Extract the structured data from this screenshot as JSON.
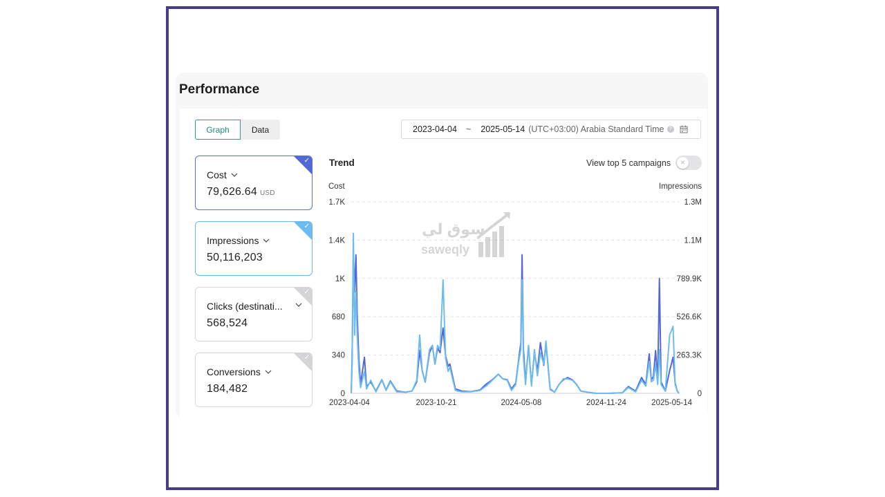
{
  "page": {
    "title": "Performance"
  },
  "tabs": {
    "graph": "Graph",
    "data": "Data"
  },
  "date_range": {
    "start": "2023-04-04",
    "separator": "~",
    "end": "2025-05-14",
    "timezone": "(UTC+03:00) Arabia Standard Time"
  },
  "metrics": [
    {
      "label": "Cost",
      "value": "79,626.64",
      "unit": "USD",
      "selected": true,
      "color": "#5468d4"
    },
    {
      "label": "Impressions",
      "value": "50,116,203",
      "unit": "",
      "selected": true,
      "color": "#6cbcf0"
    },
    {
      "label": "Clicks (destinati...",
      "value": "568,524",
      "unit": "",
      "selected": false,
      "color": "#d5d5d8"
    },
    {
      "label": "Conversions",
      "value": "184,482",
      "unit": "",
      "selected": false,
      "color": "#d5d5d8"
    }
  ],
  "trend": {
    "title": "Trend",
    "toggle_label": "View top 5 campaigns",
    "toggle_on": false
  },
  "watermark": {
    "arabic": "سوق لي",
    "latin": "saweqly"
  },
  "chart_data": {
    "type": "line",
    "x_ticks": [
      "2023-04-04",
      "2023-10-21",
      "2024-05-08",
      "2024-11-24",
      "2025-05-14"
    ],
    "y_left": {
      "label": "Cost",
      "ticks": [
        "0",
        "340",
        "680",
        "1K",
        "1.4K",
        "1.7K"
      ],
      "range": [
        0,
        1700
      ]
    },
    "y_right": {
      "label": "Impressions",
      "ticks": [
        "0",
        "263.3K",
        "526.6K",
        "789.9K",
        "1.1M",
        "1.3M"
      ],
      "range": [
        0,
        1316500
      ]
    },
    "grid": true,
    "series": [
      {
        "name": "Cost",
        "color": "#5468d4",
        "axis": "left",
        "points": [
          [
            "2023-04-04",
            0
          ],
          [
            "2023-04-06",
            300
          ],
          [
            "2023-04-09",
            1240
          ],
          [
            "2023-04-12",
            900
          ],
          [
            "2023-04-15",
            1230
          ],
          [
            "2023-04-18",
            700
          ],
          [
            "2023-04-22",
            300
          ],
          [
            "2023-04-26",
            80
          ],
          [
            "2023-05-05",
            320
          ],
          [
            "2023-05-10",
            60
          ],
          [
            "2023-05-20",
            100
          ],
          [
            "2023-06-01",
            20
          ],
          [
            "2023-06-15",
            120
          ],
          [
            "2023-06-25",
            30
          ],
          [
            "2023-07-05",
            110
          ],
          [
            "2023-07-20",
            20
          ],
          [
            "2023-08-10",
            10
          ],
          [
            "2023-08-25",
            20
          ],
          [
            "2023-09-05",
            100
          ],
          [
            "2023-09-12",
            380
          ],
          [
            "2023-09-18",
            200
          ],
          [
            "2023-09-25",
            100
          ],
          [
            "2023-10-05",
            360
          ],
          [
            "2023-10-12",
            420
          ],
          [
            "2023-10-18",
            260
          ],
          [
            "2023-10-24",
            400
          ],
          [
            "2023-10-30",
            360
          ],
          [
            "2023-11-06",
            580
          ],
          [
            "2023-11-12",
            330
          ],
          [
            "2023-11-18",
            240
          ],
          [
            "2023-11-22",
            260
          ],
          [
            "2023-12-05",
            40
          ],
          [
            "2023-12-20",
            20
          ],
          [
            "2024-01-10",
            15
          ],
          [
            "2024-02-01",
            30
          ],
          [
            "2024-02-15",
            80
          ],
          [
            "2024-03-01",
            120
          ],
          [
            "2024-03-15",
            170
          ],
          [
            "2024-03-25",
            130
          ],
          [
            "2024-04-05",
            120
          ],
          [
            "2024-04-15",
            40
          ],
          [
            "2024-04-25",
            90
          ],
          [
            "2024-05-02",
            300
          ],
          [
            "2024-05-07",
            450
          ],
          [
            "2024-05-10",
            1230
          ],
          [
            "2024-05-13",
            400
          ],
          [
            "2024-05-18",
            100
          ],
          [
            "2024-05-25",
            420
          ],
          [
            "2024-06-01",
            80
          ],
          [
            "2024-06-08",
            360
          ],
          [
            "2024-06-15",
            200
          ],
          [
            "2024-06-22",
            450
          ],
          [
            "2024-06-30",
            250
          ],
          [
            "2024-07-05",
            440
          ],
          [
            "2024-07-15",
            40
          ],
          [
            "2024-07-25",
            10
          ],
          [
            "2024-08-05",
            80
          ],
          [
            "2024-08-15",
            120
          ],
          [
            "2024-08-25",
            140
          ],
          [
            "2024-09-05",
            120
          ],
          [
            "2024-09-15",
            80
          ],
          [
            "2024-09-25",
            20
          ],
          [
            "2024-10-10",
            10
          ],
          [
            "2024-11-01",
            0
          ],
          [
            "2024-12-01",
            0
          ],
          [
            "2025-01-01",
            5
          ],
          [
            "2025-01-15",
            60
          ],
          [
            "2025-02-01",
            20
          ],
          [
            "2025-02-15",
            140
          ],
          [
            "2025-02-25",
            80
          ],
          [
            "2025-03-05",
            350
          ],
          [
            "2025-03-10",
            120
          ],
          [
            "2025-03-15",
            150
          ],
          [
            "2025-03-20",
            380
          ],
          [
            "2025-03-25",
            120
          ],
          [
            "2025-03-29",
            1020
          ],
          [
            "2025-04-02",
            100
          ],
          [
            "2025-04-12",
            20
          ],
          [
            "2025-04-22",
            200
          ],
          [
            "2025-04-30",
            320
          ],
          [
            "2025-05-05",
            90
          ],
          [
            "2025-05-10",
            20
          ],
          [
            "2025-05-14",
            0
          ]
        ]
      },
      {
        "name": "Impressions",
        "color": "#6cbcf0",
        "axis": "right",
        "points": [
          [
            "2023-04-04",
            0
          ],
          [
            "2023-04-06",
            180000
          ],
          [
            "2023-04-09",
            1100000
          ],
          [
            "2023-04-12",
            400000
          ],
          [
            "2023-04-15",
            700000
          ],
          [
            "2023-04-18",
            400000
          ],
          [
            "2023-04-22",
            150000
          ],
          [
            "2023-04-26",
            40000
          ],
          [
            "2023-05-05",
            150000
          ],
          [
            "2023-05-10",
            30000
          ],
          [
            "2023-05-20",
            90000
          ],
          [
            "2023-06-01",
            10000
          ],
          [
            "2023-06-15",
            90000
          ],
          [
            "2023-06-25",
            20000
          ],
          [
            "2023-07-05",
            80000
          ],
          [
            "2023-07-20",
            10000
          ],
          [
            "2023-08-10",
            8000
          ],
          [
            "2023-08-25",
            15000
          ],
          [
            "2023-09-05",
            90000
          ],
          [
            "2023-09-12",
            400000
          ],
          [
            "2023-09-18",
            150000
          ],
          [
            "2023-09-25",
            80000
          ],
          [
            "2023-10-05",
            300000
          ],
          [
            "2023-10-12",
            330000
          ],
          [
            "2023-10-18",
            200000
          ],
          [
            "2023-10-24",
            330000
          ],
          [
            "2023-10-30",
            300000
          ],
          [
            "2023-11-06",
            780000
          ],
          [
            "2023-11-12",
            240000
          ],
          [
            "2023-11-18",
            150000
          ],
          [
            "2023-11-22",
            180000
          ],
          [
            "2023-12-05",
            20000
          ],
          [
            "2023-12-20",
            10000
          ],
          [
            "2024-01-10",
            10000
          ],
          [
            "2024-02-01",
            20000
          ],
          [
            "2024-02-15",
            50000
          ],
          [
            "2024-03-01",
            90000
          ],
          [
            "2024-03-15",
            130000
          ],
          [
            "2024-03-25",
            100000
          ],
          [
            "2024-04-05",
            90000
          ],
          [
            "2024-04-15",
            20000
          ],
          [
            "2024-04-25",
            60000
          ],
          [
            "2024-05-02",
            220000
          ],
          [
            "2024-05-07",
            300000
          ],
          [
            "2024-05-10",
            780000
          ],
          [
            "2024-05-13",
            250000
          ],
          [
            "2024-05-18",
            60000
          ],
          [
            "2024-05-25",
            330000
          ],
          [
            "2024-06-01",
            50000
          ],
          [
            "2024-06-08",
            300000
          ],
          [
            "2024-06-15",
            120000
          ],
          [
            "2024-06-22",
            280000
          ],
          [
            "2024-06-30",
            200000
          ],
          [
            "2024-07-05",
            360000
          ],
          [
            "2024-07-15",
            25000
          ],
          [
            "2024-07-25",
            8000
          ],
          [
            "2024-08-05",
            60000
          ],
          [
            "2024-08-15",
            100000
          ],
          [
            "2024-08-25",
            100000
          ],
          [
            "2024-09-05",
            90000
          ],
          [
            "2024-09-15",
            60000
          ],
          [
            "2024-09-25",
            15000
          ],
          [
            "2024-10-10",
            8000
          ],
          [
            "2024-11-01",
            0
          ],
          [
            "2024-12-01",
            0
          ],
          [
            "2025-01-01",
            4000
          ],
          [
            "2025-01-15",
            40000
          ],
          [
            "2025-02-01",
            10000
          ],
          [
            "2025-02-15",
            90000
          ],
          [
            "2025-02-25",
            50000
          ],
          [
            "2025-03-05",
            220000
          ],
          [
            "2025-03-10",
            80000
          ],
          [
            "2025-03-15",
            90000
          ],
          [
            "2025-03-20",
            200000
          ],
          [
            "2025-03-25",
            60000
          ],
          [
            "2025-03-29",
            300000
          ],
          [
            "2025-04-02",
            60000
          ],
          [
            "2025-04-12",
            15000
          ],
          [
            "2025-04-22",
            400000
          ],
          [
            "2025-04-30",
            460000
          ],
          [
            "2025-05-05",
            60000
          ],
          [
            "2025-05-10",
            15000
          ],
          [
            "2025-05-14",
            0
          ]
        ]
      }
    ]
  }
}
